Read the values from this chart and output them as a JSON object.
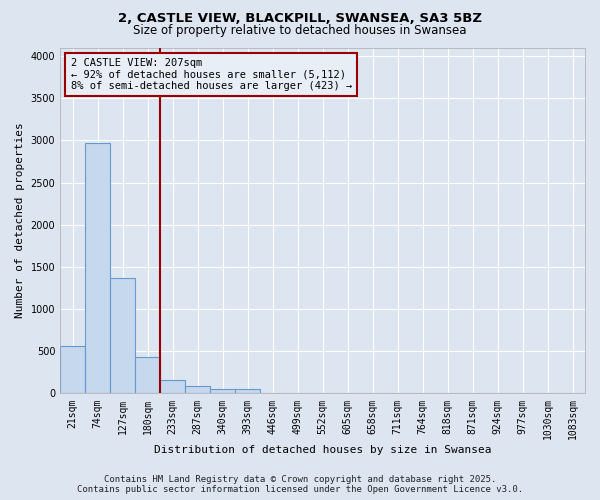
{
  "title_line1": "2, CASTLE VIEW, BLACKPILL, SWANSEA, SA3 5BZ",
  "title_line2": "Size of property relative to detached houses in Swansea",
  "xlabel": "Distribution of detached houses by size in Swansea",
  "ylabel": "Number of detached properties",
  "bar_labels": [
    "21sqm",
    "74sqm",
    "127sqm",
    "180sqm",
    "233sqm",
    "287sqm",
    "340sqm",
    "393sqm",
    "446sqm",
    "499sqm",
    "552sqm",
    "605sqm",
    "658sqm",
    "711sqm",
    "764sqm",
    "818sqm",
    "871sqm",
    "924sqm",
    "977sqm",
    "1030sqm",
    "1083sqm"
  ],
  "bar_values": [
    560,
    2970,
    1370,
    430,
    165,
    90,
    55,
    50,
    0,
    0,
    0,
    0,
    0,
    0,
    0,
    0,
    0,
    0,
    0,
    0,
    0
  ],
  "bar_color": "#c5d8ee",
  "bar_edge_color": "#6699cc",
  "ylim": [
    0,
    4100
  ],
  "yticks": [
    0,
    500,
    1000,
    1500,
    2000,
    2500,
    3000,
    3500,
    4000
  ],
  "property_line_x": 3.5,
  "property_line_color": "#990000",
  "annotation_text": "2 CASTLE VIEW: 207sqm\n← 92% of detached houses are smaller (5,112)\n8% of semi-detached houses are larger (423) →",
  "annotation_box_facecolor": "#e8eef5",
  "annotation_box_edgecolor": "#990000",
  "footer_line1": "Contains HM Land Registry data © Crown copyright and database right 2025.",
  "footer_line2": "Contains public sector information licensed under the Open Government Licence v3.0.",
  "background_color": "#dde6f0",
  "plot_background": "#dde6f0",
  "grid_color": "#ffffff",
  "title_fontsize": 9.5,
  "subtitle_fontsize": 8.5,
  "axis_label_fontsize": 8,
  "tick_fontsize": 7,
  "annotation_fontsize": 7.5,
  "footer_fontsize": 6.5
}
